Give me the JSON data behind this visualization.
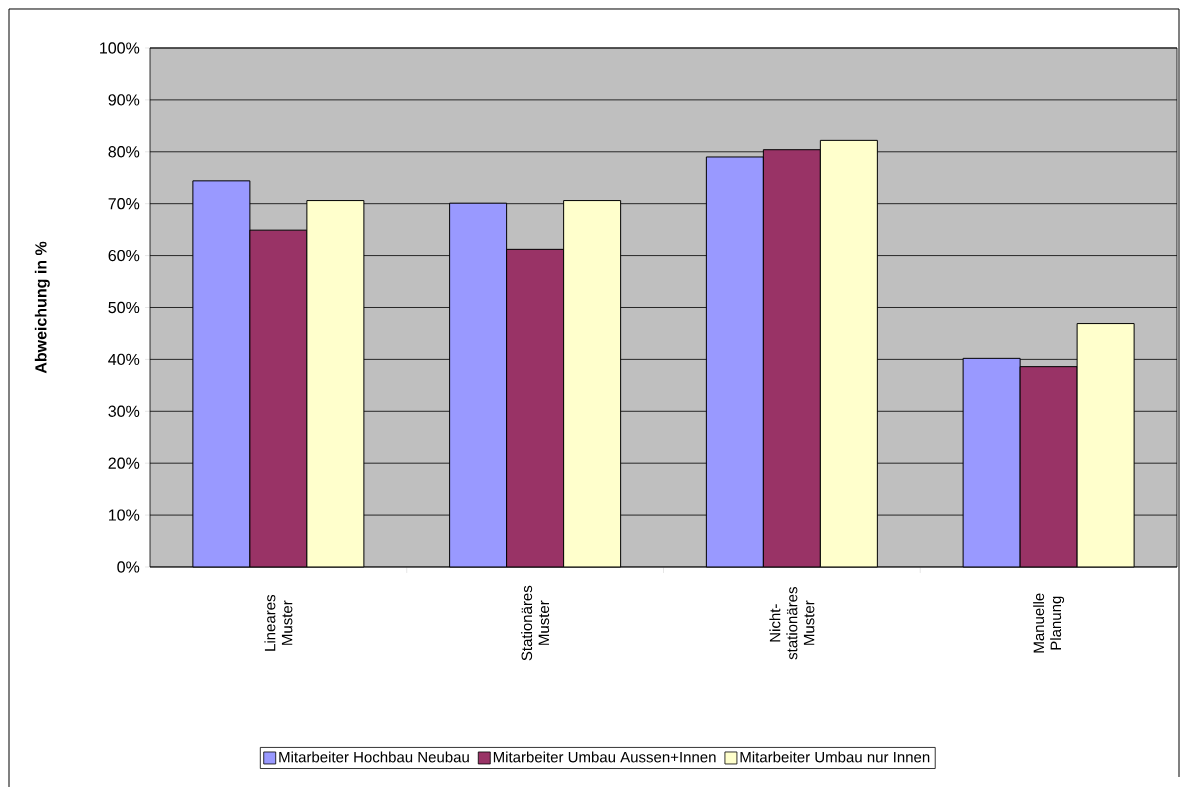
{
  "chart_data": {
    "type": "bar",
    "ylabel": "Abweichung in %",
    "categories": [
      "Lineares Muster",
      "Stationäres Muster",
      "Nicht-stationäres Muster",
      "Manuelle Planung"
    ],
    "series": [
      {
        "name": "Mitarbeiter Hochbau Neubau",
        "color": "#9999ff",
        "values": [
          74.4,
          70.1,
          79.0,
          40.2
        ]
      },
      {
        "name": "Mitarbeiter Umbau Aussen+Innen",
        "color": "#993366",
        "values": [
          64.9,
          61.2,
          80.4,
          38.6
        ]
      },
      {
        "name": "Mitarbeiter Umbau nur Innen",
        "color": "#ffffcc",
        "values": [
          70.6,
          70.6,
          82.2,
          46.9
        ]
      }
    ],
    "ylim": [
      0,
      100
    ],
    "yticks": [
      {
        "value": 0,
        "label": "0%"
      },
      {
        "value": 10,
        "label": "10%"
      },
      {
        "value": 20,
        "label": "20%"
      },
      {
        "value": 30,
        "label": "30%"
      },
      {
        "value": 40,
        "label": "40%"
      },
      {
        "value": 50,
        "label": "50%"
      },
      {
        "value": 60,
        "label": "60%"
      },
      {
        "value": 70,
        "label": "70%"
      },
      {
        "value": 80,
        "label": "80%"
      },
      {
        "value": 90,
        "label": "90%"
      },
      {
        "value": 100,
        "label": "100%"
      }
    ],
    "grid": "y",
    "legend": "bottom"
  }
}
